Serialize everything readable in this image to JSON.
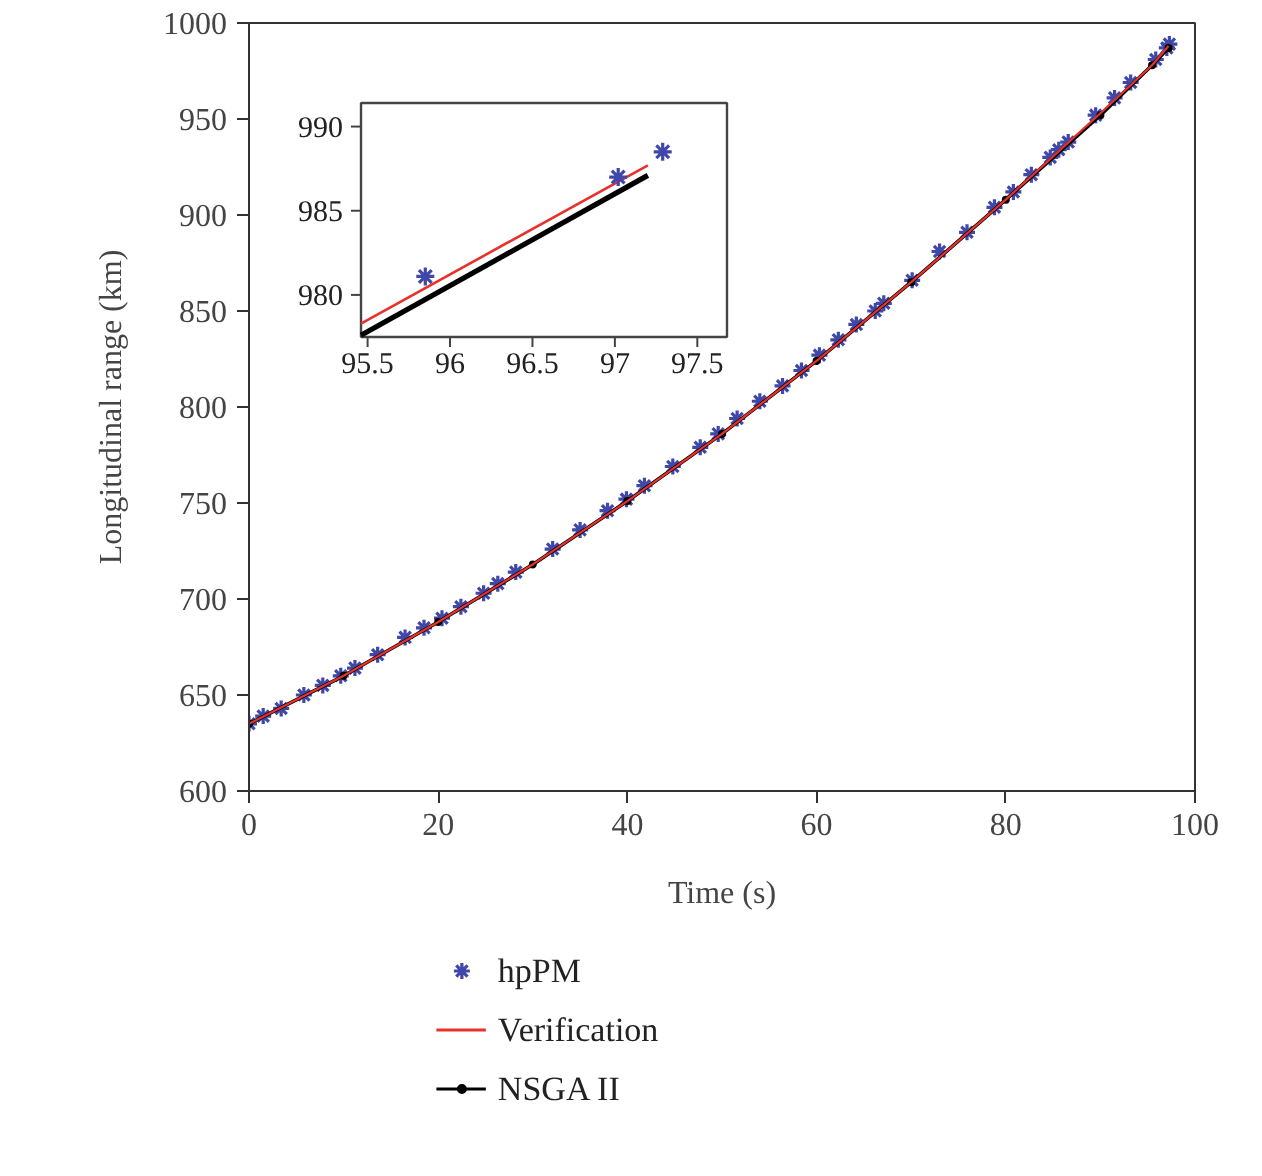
{
  "chart_data": [
    {
      "type": "line",
      "xlabel": "Time (s)",
      "ylabel": "Longitudinal range (km)",
      "xlim": [
        0,
        100
      ],
      "ylim": [
        600,
        1000
      ],
      "xticks": [
        0,
        20,
        40,
        60,
        80,
        100
      ],
      "yticks": [
        600,
        650,
        700,
        750,
        800,
        850,
        900,
        950,
        1000
      ],
      "legend": "bottom",
      "series": [
        {
          "name": "hpPM",
          "type": "scatter",
          "marker": "cross",
          "color": "#3f48a8",
          "x": [
            0,
            1.5,
            3.4,
            5.8,
            7.8,
            9.7,
            11.2,
            13.6,
            16.5,
            18.5,
            20.4,
            22.4,
            24.8,
            26.3,
            28.2,
            32.1,
            35.0,
            37.9,
            39.9,
            41.8,
            44.8,
            47.7,
            49.6,
            51.6,
            54.0,
            56.4,
            58.4,
            60.3,
            62.3,
            64.2,
            66.2,
            67.1,
            70.1,
            73.0,
            75.9,
            78.8,
            80.8,
            82.7,
            84.7,
            85.6,
            86.6,
            89.5,
            91.5,
            93.2,
            95.85,
            97.02,
            97.29
          ],
          "values": [
            635,
            639,
            643,
            650,
            655,
            660,
            664,
            671,
            680,
            685,
            690,
            696,
            703,
            708,
            714,
            726,
            736,
            746,
            752,
            759,
            769,
            779,
            786,
            794,
            803,
            811,
            819,
            827,
            835,
            843,
            850,
            854,
            866,
            881,
            891,
            904,
            912,
            921,
            930,
            934,
            938,
            952,
            961,
            969,
            981,
            987,
            989
          ]
        },
        {
          "name": "Verification",
          "line_style": "solid",
          "marker": "none",
          "color": "#e8312a",
          "x": [
            0,
            10,
            20,
            30,
            40,
            50,
            60,
            70,
            80,
            90,
            95.46,
            97.2
          ],
          "values": [
            635,
            660,
            688,
            718,
            751,
            786,
            824,
            865,
            908,
            953,
            978,
            988
          ]
        },
        {
          "name": "NSGA II",
          "line_style": "solid",
          "marker": "circle",
          "color": "#000000",
          "x": [
            0,
            10,
            20,
            30,
            40,
            50,
            60,
            70,
            80,
            90,
            95.46,
            97.2
          ],
          "values": [
            635,
            660,
            688,
            718,
            751,
            786,
            824,
            865,
            908,
            952,
            978,
            987
          ]
        }
      ]
    },
    {
      "type": "line",
      "xlim": [
        95.46,
        97.68
      ],
      "ylim": [
        977.5,
        991.4
      ],
      "xticks": [
        95.5,
        96,
        96.5,
        97,
        97.5
      ],
      "yticks": [
        980,
        985,
        990
      ],
      "series": [
        {
          "type": "scatter",
          "marker": "cross",
          "color": "#3f48a8",
          "x": [
            95.85,
            97.02,
            97.29
          ],
          "values": [
            981.1,
            987.0,
            988.5
          ]
        },
        {
          "line_style": "solid",
          "marker": "none",
          "color": "#e8312a",
          "x": [
            95.46,
            97.2
          ],
          "values": [
            978.3,
            987.7
          ]
        },
        {
          "line_style": "solid",
          "marker": "none",
          "color": "#000000",
          "x": [
            95.46,
            97.2
          ],
          "values": [
            977.6,
            987.1
          ]
        }
      ]
    }
  ]
}
